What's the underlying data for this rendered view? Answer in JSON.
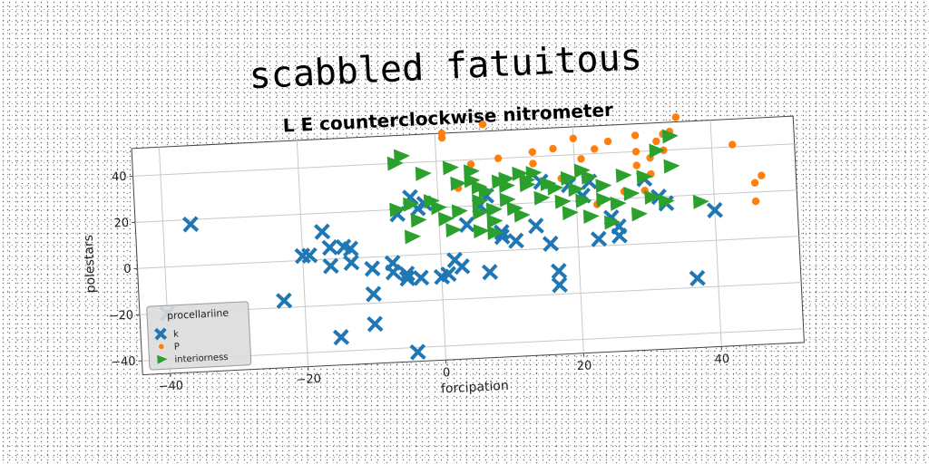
{
  "chart_data": {
    "type": "scatter",
    "title": "scabbled fatuitous",
    "subtitle": "L E counterclockwise nitrometer",
    "xlabel": "forcipation",
    "ylabel": "polestars",
    "xlim": [
      -44,
      52
    ],
    "ylim": [
      -46,
      52
    ],
    "xticks": [
      -40,
      -20,
      0,
      20,
      40
    ],
    "yticks": [
      -40,
      -20,
      0,
      20,
      40
    ],
    "grid": true,
    "legend": {
      "title": "procellariine",
      "position": "lower-left"
    },
    "series": [
      {
        "name": "k",
        "marker": "x",
        "color": "#1f77b4",
        "points": [
          [
            -40,
            -20
          ],
          [
            -36,
            18
          ],
          [
            -23,
            -17
          ],
          [
            -20,
            2
          ],
          [
            -19,
            2
          ],
          [
            -17,
            12
          ],
          [
            -16,
            -3
          ],
          [
            -16,
            5
          ],
          [
            -15,
            -34
          ],
          [
            -14,
            5
          ],
          [
            -13,
            -2
          ],
          [
            -13,
            4
          ],
          [
            -10,
            -5
          ],
          [
            -10,
            -29
          ],
          [
            -10,
            -16
          ],
          [
            -7,
            -7
          ],
          [
            -7,
            -3
          ],
          [
            -6,
            18
          ],
          [
            -5,
            -8
          ],
          [
            -5,
            -10
          ],
          [
            -4,
            -42
          ],
          [
            -4,
            25
          ],
          [
            -3,
            20
          ],
          [
            -3,
            -10
          ],
          [
            -2,
            22
          ],
          [
            0,
            -10
          ],
          [
            1,
            -9
          ],
          [
            2,
            -3
          ],
          [
            3,
            -6
          ],
          [
            4,
            12
          ],
          [
            6,
            20
          ],
          [
            7,
            24
          ],
          [
            7,
            -9
          ],
          [
            9,
            6
          ],
          [
            9,
            8
          ],
          [
            11,
            4
          ],
          [
            14,
            10
          ],
          [
            15,
            29
          ],
          [
            16,
            2
          ],
          [
            17,
            -16
          ],
          [
            17,
            -10
          ],
          [
            19,
            27
          ],
          [
            21,
            22
          ],
          [
            22,
            28
          ],
          [
            23,
            3
          ],
          [
            25,
            12
          ],
          [
            26,
            8
          ],
          [
            26,
            4
          ],
          [
            30,
            28
          ],
          [
            32,
            20
          ],
          [
            33,
            17
          ],
          [
            37,
            -16
          ],
          [
            40,
            13
          ]
        ]
      },
      {
        "name": "P",
        "marker": "o",
        "color": "#ff7f0e",
        "points": [
          [
            1,
            52
          ],
          [
            1,
            50
          ],
          [
            2,
            37
          ],
          [
            3,
            28
          ],
          [
            3,
            18
          ],
          [
            5,
            38
          ],
          [
            7,
            55
          ],
          [
            9,
            40
          ],
          [
            14,
            37
          ],
          [
            14,
            42
          ],
          [
            17,
            43
          ],
          [
            18,
            30
          ],
          [
            20,
            47
          ],
          [
            21,
            38
          ],
          [
            23,
            18
          ],
          [
            23,
            42
          ],
          [
            25,
            45
          ],
          [
            27,
            23
          ],
          [
            29,
            34
          ],
          [
            29,
            40
          ],
          [
            29,
            47
          ],
          [
            30,
            23
          ],
          [
            31,
            37
          ],
          [
            31,
            30
          ],
          [
            32,
            44
          ],
          [
            33,
            40
          ],
          [
            33,
            47
          ],
          [
            34,
            48
          ],
          [
            35,
            54
          ],
          [
            43,
            41
          ],
          [
            46,
            24
          ],
          [
            46,
            16
          ],
          [
            47,
            27
          ]
        ]
      },
      {
        "name": "interiorness",
        "marker": ">",
        "color": "#2ca02c",
        "points": [
          [
            -6,
            40
          ],
          [
            -6,
            20
          ],
          [
            -5,
            43
          ],
          [
            -4,
            22
          ],
          [
            -4,
            8
          ],
          [
            -3,
            15
          ],
          [
            -2,
            35
          ],
          [
            -1,
            23
          ],
          [
            0,
            20
          ],
          [
            1,
            15
          ],
          [
            2,
            10
          ],
          [
            2,
            37
          ],
          [
            3,
            30
          ],
          [
            3,
            18
          ],
          [
            5,
            35
          ],
          [
            5,
            31
          ],
          [
            6,
            28
          ],
          [
            6,
            22
          ],
          [
            6,
            17
          ],
          [
            6,
            9
          ],
          [
            7,
            26
          ],
          [
            8,
            18
          ],
          [
            8,
            13
          ],
          [
            8,
            8
          ],
          [
            9,
            30
          ],
          [
            10,
            22
          ],
          [
            10,
            31
          ],
          [
            10,
            28
          ],
          [
            11,
            18
          ],
          [
            12,
            33
          ],
          [
            12,
            15
          ],
          [
            13,
            28
          ],
          [
            13,
            30
          ],
          [
            14,
            33
          ],
          [
            15,
            22
          ],
          [
            16,
            28
          ],
          [
            17,
            26
          ],
          [
            18,
            20
          ],
          [
            19,
            30
          ],
          [
            19,
            15
          ],
          [
            20,
            25
          ],
          [
            21,
            20
          ],
          [
            21,
            33
          ],
          [
            22,
            30
          ],
          [
            22,
            13
          ],
          [
            24,
            26
          ],
          [
            24,
            20
          ],
          [
            25,
            10
          ],
          [
            26,
            18
          ],
          [
            27,
            30
          ],
          [
            28,
            22
          ],
          [
            29,
            13
          ],
          [
            30,
            29
          ],
          [
            31,
            20
          ],
          [
            32,
            40
          ],
          [
            33,
            18
          ],
          [
            34,
            33
          ],
          [
            34,
            46
          ],
          [
            38,
            17
          ]
        ]
      }
    ]
  }
}
